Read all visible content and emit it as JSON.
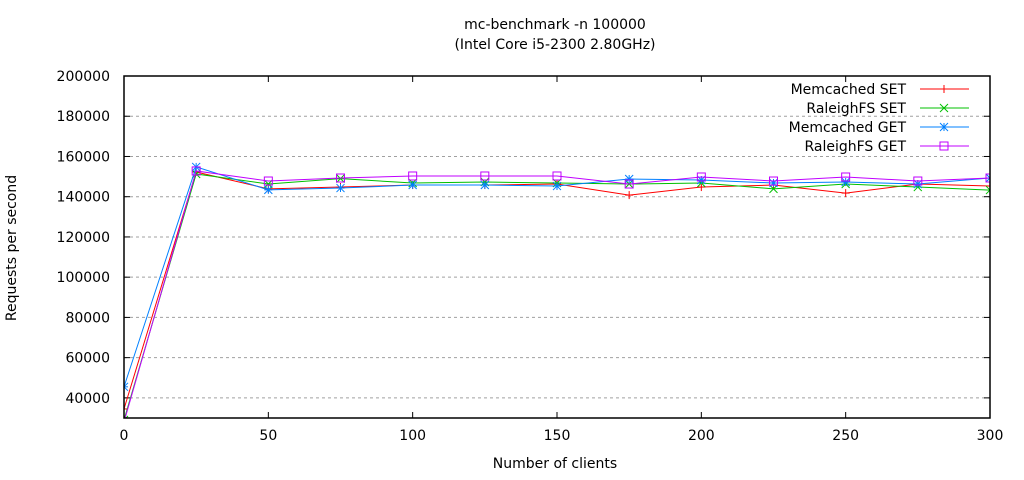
{
  "chart_data": {
    "type": "line",
    "title": "mc-benchmark -n 100000",
    "subtitle": "(Intel Core i5-2300 2.80GHz)",
    "xlabel": "Number of clients",
    "ylabel": "Requests per second",
    "xlim": [
      0,
      300
    ],
    "ylim": [
      30000,
      200000
    ],
    "xticks": [
      0,
      50,
      100,
      150,
      200,
      250,
      300
    ],
    "yticks": [
      40000,
      60000,
      80000,
      100000,
      120000,
      140000,
      160000,
      180000,
      200000
    ],
    "grid": "horizontal dashed",
    "legend_position": "top-right inside",
    "x": [
      0,
      25,
      50,
      75,
      100,
      125,
      150,
      175,
      200,
      225,
      250,
      275,
      300
    ],
    "series": [
      {
        "name": "Memcached SET",
        "color": "#ff0000",
        "marker": "plus",
        "values": [
          34500,
          152300,
          143900,
          144800,
          145800,
          145800,
          146300,
          140800,
          144800,
          145800,
          141800,
          146300,
          145300
        ]
      },
      {
        "name": "RaleighFS SET",
        "color": "#00c000",
        "marker": "cross",
        "values": [
          29000,
          151300,
          146300,
          149000,
          146800,
          147300,
          146800,
          146300,
          146800,
          143900,
          146300,
          144800,
          143300
        ]
      },
      {
        "name": "Memcached GET",
        "color": "#0080ff",
        "marker": "star",
        "values": [
          45500,
          154800,
          143400,
          144300,
          145800,
          145800,
          145300,
          148800,
          148300,
          146800,
          147300,
          146300,
          149300
        ]
      },
      {
        "name": "RaleighFS GET",
        "color": "#c000ff",
        "marker": "box",
        "values": [
          28000,
          152800,
          147800,
          149300,
          150300,
          150300,
          150300,
          146300,
          149800,
          147800,
          149800,
          147800,
          149300
        ]
      }
    ]
  }
}
